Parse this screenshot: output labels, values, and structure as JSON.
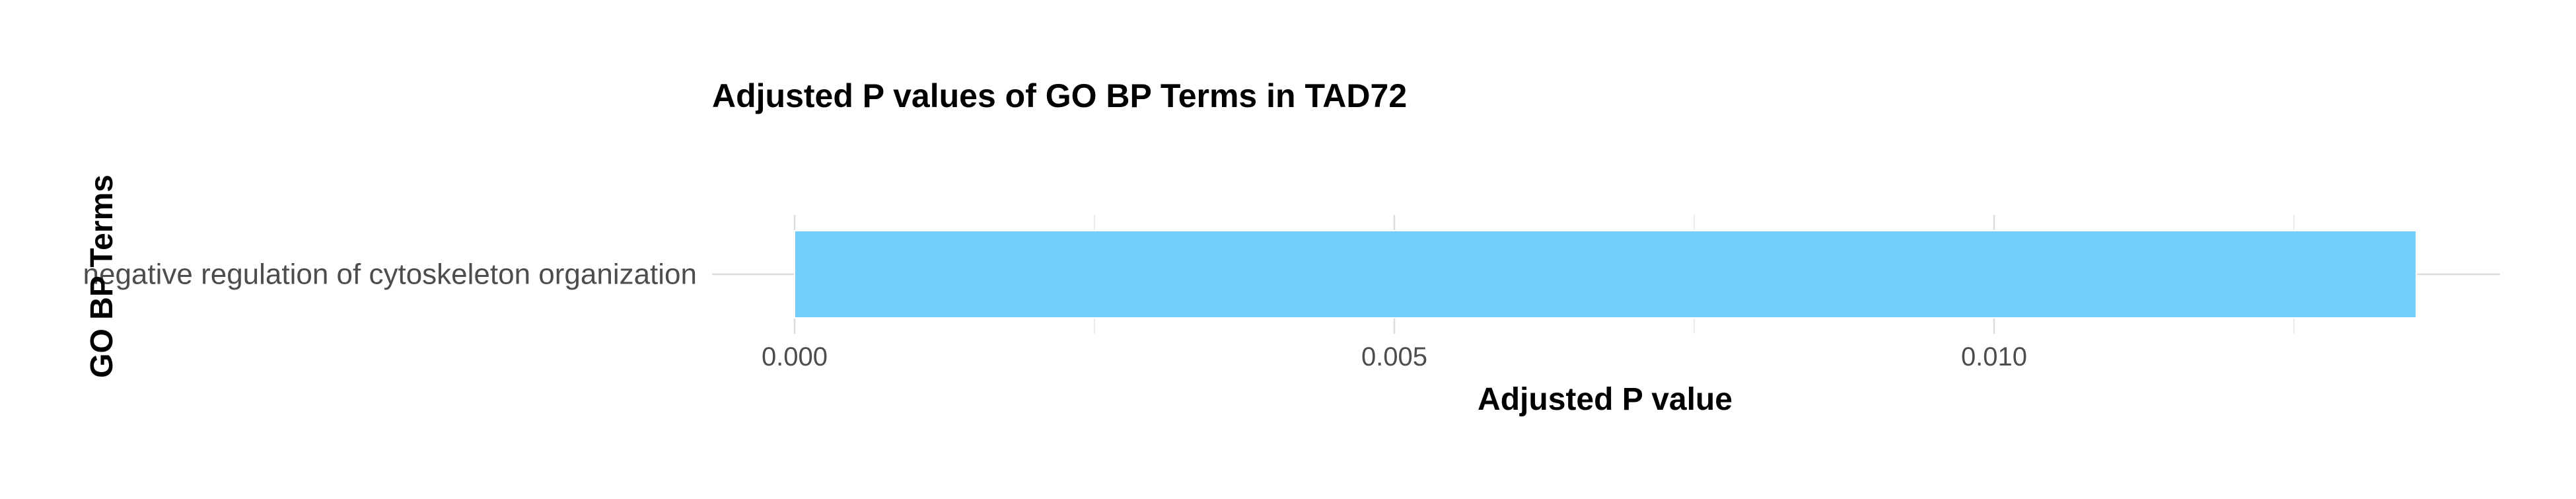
{
  "chart_data": {
    "type": "bar",
    "orientation": "horizontal",
    "title": "Adjusted P values of GO BP Terms in TAD72",
    "xlabel": "Adjusted P value",
    "ylabel": "GO BP Terms",
    "categories": [
      "negative regulation of cytoskeleton organization"
    ],
    "values": [
      0.01352
    ],
    "xlim": [
      0,
      0.0142
    ],
    "xticks": [
      0,
      0.005,
      0.01
    ],
    "xtick_labels": [
      "0.000",
      "0.005",
      "0.010"
    ],
    "bar_color": "#74CEFA",
    "grid": true,
    "legend": "none"
  }
}
